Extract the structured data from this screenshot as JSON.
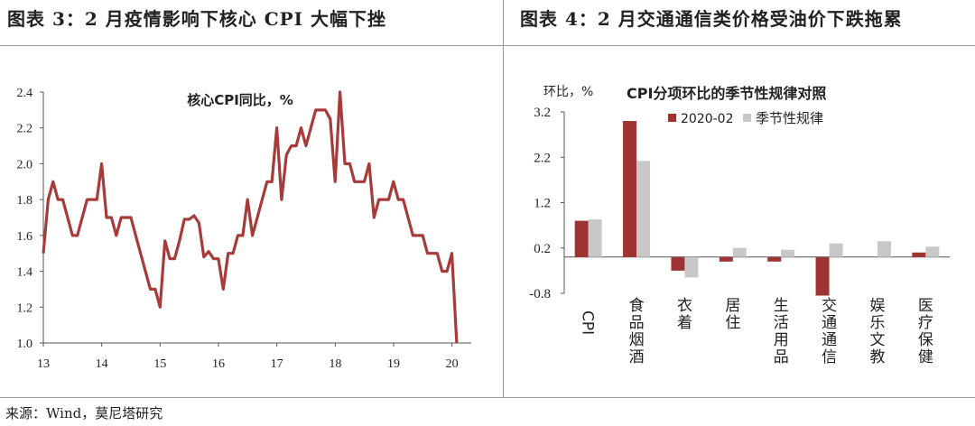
{
  "titles": {
    "left": "图表 3：2 月疫情影响下核心 CPI 大幅下挫",
    "right": "图表 4：2 月交通通信类价格受油价下跌拖累"
  },
  "source": "来源：Wind，莫尼塔研究",
  "colors": {
    "line": "#a83a3a",
    "bar_2020": "#9e3431",
    "bar_seasonal": "#c8c8c8"
  },
  "chart_data": [
    {
      "type": "line",
      "title": "核心CPI同比，%",
      "xlabel": "",
      "ylabel": "",
      "ylim": [
        1.0,
        2.4
      ],
      "yticks": [
        "1.0",
        "1.2",
        "1.4",
        "1.6",
        "1.8",
        "2.0",
        "2.2",
        "2.4"
      ],
      "xticks": [
        "13",
        "14",
        "15",
        "16",
        "17",
        "18",
        "19",
        "20"
      ],
      "x_start": 13.0,
      "x_step": 0.0833,
      "series": [
        {
          "values": [
            1.5,
            1.8,
            1.9,
            1.8,
            1.8,
            1.7,
            1.6,
            1.6,
            1.7,
            1.8,
            1.8,
            1.8,
            2.0,
            1.7,
            1.7,
            1.6,
            1.7,
            1.7,
            1.7,
            1.6,
            1.5,
            1.4,
            1.3,
            1.3,
            1.2,
            1.57,
            1.47,
            1.47,
            1.57,
            1.69,
            1.69,
            1.71,
            1.67,
            1.48,
            1.51,
            1.47,
            1.47,
            1.3,
            1.5,
            1.5,
            1.6,
            1.6,
            1.8,
            1.6,
            1.7,
            1.8,
            1.9,
            1.9,
            2.2,
            1.8,
            2.05,
            2.1,
            2.1,
            2.2,
            2.1,
            2.2,
            2.3,
            2.3,
            2.3,
            2.25,
            1.9,
            2.4,
            2.0,
            2.0,
            1.9,
            1.9,
            1.9,
            2.0,
            1.7,
            1.8,
            1.8,
            1.8,
            1.9,
            1.8,
            1.8,
            1.7,
            1.6,
            1.6,
            1.6,
            1.5,
            1.5,
            1.5,
            1.4,
            1.4,
            1.5,
            1.0
          ]
        }
      ]
    },
    {
      "type": "bar",
      "title": "CPI分项环比的季节性规律对照",
      "ylabel": "环比，%",
      "ylim": [
        -0.8,
        3.2
      ],
      "yticks": [
        "3.2",
        "2.2",
        "1.2",
        "0.2",
        "-0.8"
      ],
      "categories": [
        "CPI",
        "食品烟酒",
        "衣着",
        "居住",
        "生活用品",
        "交通通信",
        "娱乐文教",
        "医疗保健"
      ],
      "legend": "top",
      "series": [
        {
          "name": "2020-02",
          "values": [
            0.8,
            3.0,
            -0.3,
            -0.1,
            -0.1,
            -0.85,
            0.0,
            0.1
          ]
        },
        {
          "name": "季节性规律",
          "values": [
            0.83,
            2.12,
            -0.45,
            0.2,
            0.16,
            0.3,
            0.35,
            0.23
          ]
        }
      ]
    }
  ]
}
